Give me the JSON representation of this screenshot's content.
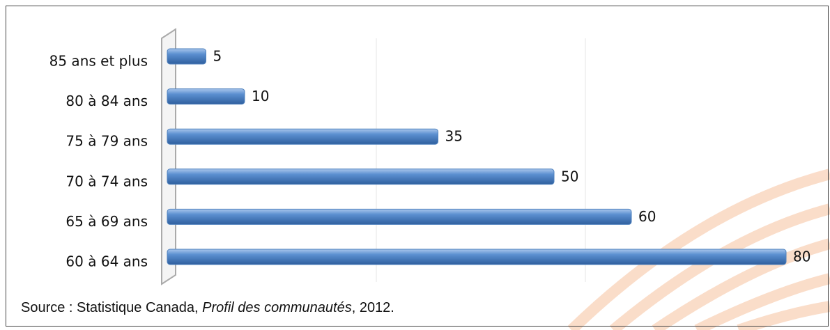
{
  "chart_data": {
    "type": "hbar",
    "categories": [
      "85 ans et plus",
      "80 à 84 ans",
      "75 à 79 ans",
      "70 à 74 ans",
      "65 à 69 ans",
      "60 à 64 ans"
    ],
    "values": [
      5,
      10,
      35,
      50,
      60,
      80
    ],
    "color": "#4f81bd",
    "xlim": [
      0,
      80
    ],
    "source": {
      "text": "Source : Statistique Canada, ",
      "italic": "Profil des communautés",
      "end": ", 2012."
    }
  }
}
